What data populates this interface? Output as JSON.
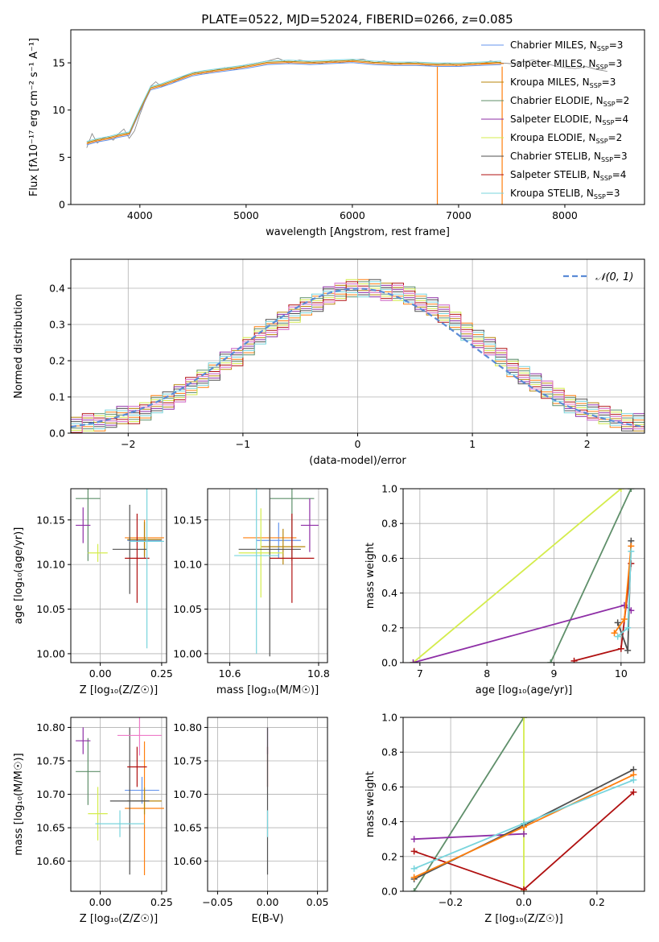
{
  "title": "PLATE=0522, MJD=52024, FIBERID=0266, z=0.085",
  "colors": {
    "Chabrier MILES": "#6495ed",
    "Salpeter MILES": "#ff7f0e",
    "Kroupa MILES": "#b8860b",
    "Chabrier ELODIE": "#5f8f6a",
    "Salpeter ELODIE": "#8e2ea6",
    "Kroupa ELODIE": "#d4ec4c",
    "Chabrier STELIB": "#505050",
    "Salpeter STELIB": "#b01010",
    "Kroupa STELIB": "#78d4dc",
    "Extra": "#ee7bc8",
    "Data": "#808080"
  },
  "legend_spectrum": [
    {
      "label": "Chabrier MILES, N",
      "sub": "SSP",
      "suffix": "=3"
    },
    {
      "label": "Salpeter MILES, N",
      "sub": "SSP",
      "suffix": "=3"
    },
    {
      "label": "Kroupa MILES, N",
      "sub": "SSP",
      "suffix": "=3"
    },
    {
      "label": "Chabrier ELODIE, N",
      "sub": "SSP",
      "suffix": "=2"
    },
    {
      "label": "Salpeter ELODIE, N",
      "sub": "SSP",
      "suffix": "=4"
    },
    {
      "label": "Kroupa ELODIE, N",
      "sub": "SSP",
      "suffix": "=2"
    },
    {
      "label": "Chabrier STELIB, N",
      "sub": "SSP",
      "suffix": "=3"
    },
    {
      "label": "Salpeter STELIB, N",
      "sub": "SSP",
      "suffix": "=4"
    },
    {
      "label": "Kroupa STELIB, N",
      "sub": "SSP",
      "suffix": "=3"
    }
  ],
  "chart_data": [
    {
      "id": "spectrum",
      "type": "line",
      "xlabel": "wavelength [Angstrom, rest frame]",
      "ylabel": "Flux [fλ10⁻¹⁷ erg cm⁻² s⁻¹ A⁻¹]",
      "xlim": [
        3350,
        8750
      ],
      "ylim": [
        0,
        18.5
      ],
      "xticks": [
        4000,
        5000,
        6000,
        7000,
        8000
      ],
      "yticks": [
        0,
        5,
        10,
        15
      ],
      "grid": false,
      "legend": "right",
      "series": [
        {
          "name": "data",
          "x": [
            3500,
            3550,
            3600,
            3650,
            3700,
            3750,
            3800,
            3850,
            3900,
            3950,
            4000,
            4050,
            4100,
            4150,
            4200,
            4300,
            4400,
            4500,
            4600,
            4700,
            4800,
            4900,
            5000,
            5100,
            5200,
            5300,
            5400,
            5500,
            5600,
            5700,
            5800,
            5900,
            6000,
            6100,
            6200,
            6300,
            6400,
            6500,
            6600,
            6700,
            6800,
            6900,
            7000,
            7100,
            7200,
            7300,
            7400,
            7500,
            7600,
            7700,
            7800,
            7900,
            8000,
            8100,
            8200,
            8300,
            8400
          ],
          "y": [
            6,
            7.5,
            6.5,
            7,
            7.2,
            6.8,
            7.5,
            8,
            7,
            7.8,
            9.5,
            11,
            12.5,
            13,
            12.5,
            12.8,
            13.5,
            14,
            13.8,
            14.2,
            14.5,
            14.3,
            14.8,
            15,
            15.2,
            15.5,
            15,
            15.3,
            15.1,
            14.9,
            15.2,
            15,
            15.3,
            15.4,
            15,
            15.2,
            14.8,
            15,
            15.1,
            14.7,
            14.8,
            15,
            14.6,
            15,
            14.8,
            15.2,
            15,
            14.9,
            15.1,
            15.3,
            15,
            14.7,
            14.5,
            14.4,
            14.6,
            14.3,
            14.1
          ]
        },
        {
          "name": "model",
          "x": [
            3500,
            3600,
            3700,
            3800,
            3900,
            4000,
            4100,
            4200,
            4300,
            4400,
            4500,
            4600,
            4800,
            5000,
            5200,
            5400,
            5600,
            5800,
            6000,
            6200,
            6400,
            6600,
            6800,
            7000,
            7200,
            7400
          ],
          "y": [
            6.5,
            6.8,
            7,
            7.3,
            7.5,
            10,
            12.3,
            12.6,
            13,
            13.4,
            13.8,
            14,
            14.3,
            14.6,
            15,
            15.1,
            15,
            15.1,
            15.2,
            15,
            14.9,
            14.9,
            14.8,
            14.8,
            14.9,
            15
          ]
        }
      ]
    },
    {
      "id": "residuals",
      "type": "line",
      "xlabel": "(data-model)/error",
      "ylabel": "Normed distribution",
      "xlim": [
        -2.5,
        2.5
      ],
      "ylim": [
        0,
        0.48
      ],
      "xticks": [
        -2,
        -1,
        0,
        1,
        2
      ],
      "yticks": [
        0.0,
        0.1,
        0.2,
        0.3,
        0.4
      ],
      "grid": true,
      "legend": "top-right",
      "legend_label": "𝒩(0, 1)",
      "bin_width": 0.1,
      "histogram_counts": [
        0.02,
        0.03,
        0.03,
        0.04,
        0.05,
        0.05,
        0.06,
        0.08,
        0.09,
        0.11,
        0.13,
        0.15,
        0.17,
        0.2,
        0.21,
        0.24,
        0.27,
        0.29,
        0.31,
        0.33,
        0.35,
        0.36,
        0.38,
        0.39,
        0.4,
        0.4,
        0.4,
        0.39,
        0.39,
        0.38,
        0.36,
        0.35,
        0.33,
        0.31,
        0.28,
        0.26,
        0.24,
        0.21,
        0.18,
        0.16,
        0.14,
        0.12,
        0.1,
        0.08,
        0.07,
        0.06,
        0.05,
        0.04,
        0.03,
        0.03
      ]
    },
    {
      "id": "age-vs-Z",
      "type": "scatter",
      "xlabel": "Z [log₁₀(Z/Z☉)]",
      "ylabel": "age  [log₁₀(age/yr)]",
      "xlim": [
        -0.12,
        0.27
      ],
      "ylim": [
        9.99,
        10.185
      ],
      "xticks": [
        0.0,
        0.25
      ],
      "yticks": [
        10.0,
        10.05,
        10.1,
        10.15
      ],
      "grid": true,
      "points": [
        {
          "name": "Chabrier MILES",
          "x": 0.18,
          "y": 10.127,
          "xe": 0.07,
          "ye": 0.02
        },
        {
          "name": "Salpeter MILES",
          "x": 0.18,
          "y": 10.13,
          "xe": 0.08,
          "ye": 0.02
        },
        {
          "name": "Kroupa MILES",
          "x": 0.18,
          "y": 10.128,
          "xe": 0.07,
          "ye": 0.02
        },
        {
          "name": "Chabrier ELODIE",
          "x": -0.05,
          "y": 10.174,
          "xe": 0.05,
          "ye": 0.07
        },
        {
          "name": "Salpeter ELODIE",
          "x": -0.07,
          "y": 10.144,
          "xe": 0.03,
          "ye": 0.02
        },
        {
          "name": "Kroupa ELODIE",
          "x": -0.01,
          "y": 10.113,
          "xe": 0.04,
          "ye": 0.01
        },
        {
          "name": "Chabrier STELIB",
          "x": 0.12,
          "y": 10.117,
          "xe": 0.07,
          "ye": 0.05
        },
        {
          "name": "Salpeter STELIB",
          "x": 0.15,
          "y": 10.107,
          "xe": 0.05,
          "ye": 0.05
        },
        {
          "name": "Kroupa STELIB",
          "x": 0.19,
          "y": 10.126,
          "xe": 0.07,
          "ye": 0.12
        }
      ]
    },
    {
      "id": "age-vs-mass",
      "type": "scatter",
      "xlabel": "mass [log₁₀(M/M☉)]",
      "ylabel": "",
      "xlim": [
        10.55,
        10.82
      ],
      "ylim": [
        9.99,
        10.185
      ],
      "xticks": [
        10.6,
        10.8
      ],
      "yticks": [
        10.0,
        10.05,
        10.1,
        10.15
      ],
      "grid": true,
      "points": [
        {
          "name": "Chabrier MILES",
          "x": 10.71,
          "y": 10.127,
          "xe": 0.05,
          "ye": 0.02
        },
        {
          "name": "Salpeter MILES",
          "x": 10.69,
          "y": 10.13,
          "xe": 0.06,
          "ye": 0.02
        },
        {
          "name": "Kroupa MILES",
          "x": 10.72,
          "y": 10.12,
          "xe": 0.05,
          "ye": 0.02
        },
        {
          "name": "Chabrier ELODIE",
          "x": 10.74,
          "y": 10.174,
          "xe": 0.05,
          "ye": 0.07
        },
        {
          "name": "Salpeter ELODIE",
          "x": 10.78,
          "y": 10.144,
          "xe": 0.02,
          "ye": 0.03
        },
        {
          "name": "Kroupa ELODIE",
          "x": 10.67,
          "y": 10.113,
          "xe": 0.05,
          "ye": 0.05
        },
        {
          "name": "Chabrier STELIB",
          "x": 10.69,
          "y": 10.117,
          "xe": 0.07,
          "ye": 0.12
        },
        {
          "name": "Salpeter STELIB",
          "x": 10.74,
          "y": 10.107,
          "xe": 0.05,
          "ye": 0.05
        },
        {
          "name": "Kroupa STELIB",
          "x": 10.66,
          "y": 10.11,
          "xe": 0.05,
          "ye": 0.11
        }
      ]
    },
    {
      "id": "massweight-vs-age",
      "type": "line",
      "xlabel": "age  [log₁₀(age/yr)]",
      "ylabel": "mass weight",
      "xlim": [
        6.75,
        10.35
      ],
      "ylim": [
        0,
        1
      ],
      "xticks": [
        7,
        8,
        9,
        10
      ],
      "yticks": [
        0.0,
        0.2,
        0.4,
        0.6,
        0.8,
        1.0
      ],
      "grid": true,
      "series": [
        {
          "name": "Kroupa ELODIE",
          "x": [
            6.9,
            10.0
          ],
          "y": [
            0.0,
            1.0
          ]
        },
        {
          "name": "Chabrier ELODIE",
          "x": [
            8.95,
            10.15
          ],
          "y": [
            0.0,
            1.0
          ]
        },
        {
          "name": "Salpeter ELODIE",
          "x": [
            6.9,
            10.05,
            10.15
          ],
          "y": [
            0.0,
            0.33,
            0.3
          ]
        },
        {
          "name": "Salpeter STELIB",
          "x": [
            9.3,
            10.0,
            10.15
          ],
          "y": [
            0.01,
            0.08,
            0.57
          ]
        },
        {
          "name": "Chabrier STELIB",
          "x": [
            9.95,
            10.1,
            10.15
          ],
          "y": [
            0.23,
            0.07,
            0.7
          ]
        },
        {
          "name": "Salpeter MILES",
          "x": [
            9.9,
            10.05,
            10.15
          ],
          "y": [
            0.17,
            0.25,
            0.67
          ]
        },
        {
          "name": "Kroupa STELIB",
          "x": [
            9.95,
            10.1,
            10.15
          ],
          "y": [
            0.15,
            0.2,
            0.64
          ]
        }
      ]
    },
    {
      "id": "mass-vs-Z",
      "type": "scatter",
      "xlabel": "Z [log₁₀(Z/Z☉)]",
      "ylabel": "mass [log₁₀(M/M☉)]",
      "xlim": [
        -0.12,
        0.27
      ],
      "ylim": [
        10.555,
        10.815
      ],
      "xticks": [
        0.0,
        0.25
      ],
      "yticks": [
        10.6,
        10.65,
        10.7,
        10.75,
        10.8
      ],
      "grid": true,
      "points": [
        {
          "name": "Chabrier MILES",
          "x": 0.17,
          "y": 10.706,
          "xe": 0.07,
          "ye": 0.02
        },
        {
          "name": "Salpeter MILES",
          "x": 0.18,
          "y": 10.679,
          "xe": 0.08,
          "ye": 0.1
        },
        {
          "name": "Kroupa MILES",
          "x": 0.18,
          "y": 10.69,
          "xe": 0.07,
          "ye": 0.02
        },
        {
          "name": "Chabrier ELODIE",
          "x": -0.05,
          "y": 10.734,
          "xe": 0.05,
          "ye": 0.05
        },
        {
          "name": "Salpeter ELODIE",
          "x": -0.07,
          "y": 10.78,
          "xe": 0.03,
          "ye": 0.02
        },
        {
          "name": "Kroupa ELODIE",
          "x": -0.01,
          "y": 10.671,
          "xe": 0.04,
          "ye": 0.04
        },
        {
          "name": "Chabrier STELIB",
          "x": 0.12,
          "y": 10.69,
          "xe": 0.08,
          "ye": 0.11
        },
        {
          "name": "Salpeter STELIB",
          "x": 0.15,
          "y": 10.741,
          "xe": 0.04,
          "ye": 0.03
        },
        {
          "name": "Kroupa STELIB",
          "x": 0.08,
          "y": 10.656,
          "xe": 0.1,
          "ye": 0.02
        },
        {
          "name": "Extra",
          "x": 0.16,
          "y": 10.788,
          "xe": 0.09,
          "ye": 0.03
        }
      ]
    },
    {
      "id": "mass-vs-EBV",
      "type": "scatter",
      "xlabel": "E(B-V)",
      "ylabel": "",
      "xlim": [
        -0.06,
        0.06
      ],
      "ylim": [
        10.555,
        10.815
      ],
      "xticks": [
        -0.05,
        0.0,
        0.05
      ],
      "yticks": [
        10.6,
        10.65,
        10.7,
        10.75,
        10.8
      ],
      "grid": true,
      "points": [
        {
          "name": "Salpeter ELODIE",
          "x": 0.0,
          "y": 10.78,
          "xe": 0.0,
          "ye": 0.02
        },
        {
          "name": "Salpeter STELIB",
          "x": 0.0,
          "y": 10.741,
          "xe": 0.0,
          "ye": 0.03
        },
        {
          "name": "Chabrier STELIB",
          "x": 0.0,
          "y": 10.69,
          "xe": 0.0,
          "ye": 0.11
        },
        {
          "name": "Kroupa STELIB",
          "x": 0.0,
          "y": 10.656,
          "xe": 0.0,
          "ye": 0.02
        }
      ]
    },
    {
      "id": "massweight-vs-Z",
      "type": "line",
      "xlabel": "Z [log₁₀(Z/Z☉)]",
      "ylabel": "mass weight",
      "xlim": [
        -0.33,
        0.33
      ],
      "ylim": [
        0,
        1
      ],
      "xticks": [
        -0.2,
        0.0,
        0.2
      ],
      "yticks": [
        0.0,
        0.2,
        0.4,
        0.6,
        0.8,
        1.0
      ],
      "grid": true,
      "series": [
        {
          "name": "Chabrier ELODIE",
          "x": [
            -0.3,
            0.0
          ],
          "y": [
            0.0,
            1.0
          ]
        },
        {
          "name": "Kroupa ELODIE",
          "x": [
            0.0,
            0.0
          ],
          "y": [
            0.0,
            1.0
          ]
        },
        {
          "name": "Salpeter ELODIE",
          "x": [
            -0.3,
            0.0
          ],
          "y": [
            0.3,
            0.33
          ]
        },
        {
          "name": "Salpeter STELIB",
          "x": [
            -0.3,
            0.0,
            0.3
          ],
          "y": [
            0.23,
            0.01,
            0.57
          ]
        },
        {
          "name": "Chabrier STELIB",
          "x": [
            -0.3,
            0.0,
            0.3
          ],
          "y": [
            0.07,
            0.38,
            0.7
          ]
        },
        {
          "name": "Salpeter MILES",
          "x": [
            -0.3,
            0.0,
            0.3
          ],
          "y": [
            0.08,
            0.37,
            0.67
          ]
        },
        {
          "name": "Kroupa STELIB",
          "x": [
            -0.3,
            0.0,
            0.3
          ],
          "y": [
            0.13,
            0.39,
            0.64
          ]
        }
      ]
    }
  ]
}
